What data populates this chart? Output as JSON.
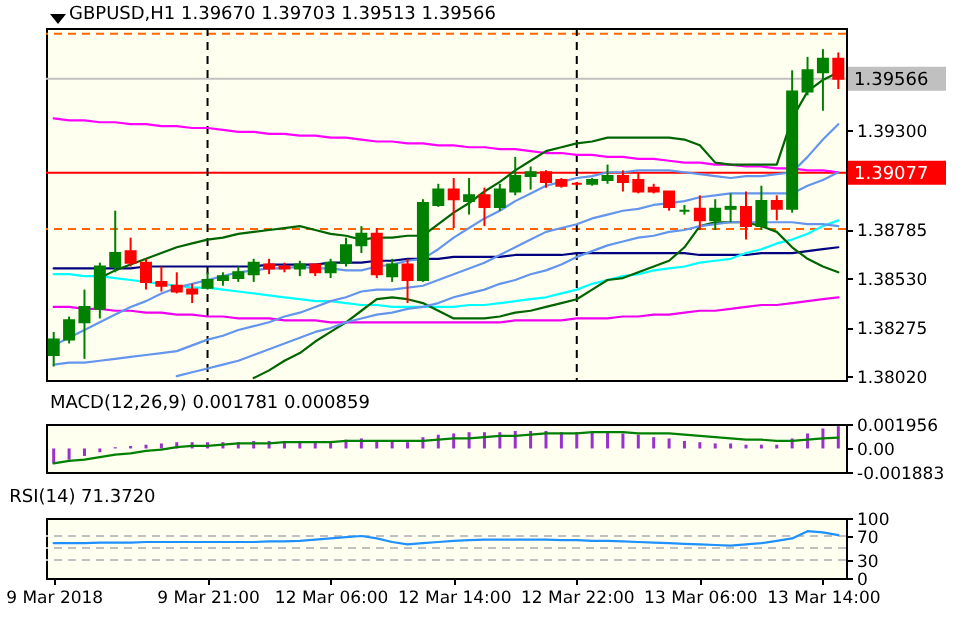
{
  "chart_data": [
    {
      "type": "candlestick",
      "title": "GBPUSD,H1 1.39670 1.39703 1.39513 1.39566",
      "categories": [
        "9 Mar 2018",
        null,
        null,
        null,
        null,
        null,
        null,
        null,
        null,
        null,
        "9 Mar 21:00",
        null,
        null,
        null,
        null,
        null,
        null,
        null,
        "12 Mar 06:00",
        null,
        null,
        null,
        null,
        null,
        null,
        null,
        "12 Mar 14:00",
        null,
        null,
        null,
        null,
        null,
        null,
        null,
        "12 Mar 22:00",
        null,
        null,
        null,
        null,
        null,
        null,
        null,
        "13 Mar 06:00",
        null,
        null,
        null,
        null,
        null,
        null,
        null,
        "13 Mar 14:00",
        null
      ],
      "ohlc": [
        [
          1.3813,
          1.3825,
          1.3807,
          1.3821
        ],
        [
          1.3821,
          1.3833,
          1.3819,
          1.3831
        ],
        [
          1.383,
          1.3847,
          1.3811,
          1.3838
        ],
        [
          1.3837,
          1.3861,
          1.3832,
          1.3859
        ],
        [
          1.3859,
          1.3888,
          1.3856,
          1.3866
        ],
        [
          1.3867,
          1.3874,
          1.3859,
          1.3861
        ],
        [
          1.3861,
          1.3863,
          1.3847,
          1.3851
        ],
        [
          1.3851,
          1.3859,
          1.3846,
          1.3849
        ],
        [
          1.3849,
          1.3856,
          1.3845,
          1.3846
        ],
        [
          1.3847,
          1.385,
          1.384,
          1.3845
        ],
        [
          1.3848,
          1.3856,
          1.3847,
          1.3852
        ],
        [
          1.3852,
          1.3856,
          1.3849,
          1.3854
        ],
        [
          1.3853,
          1.3859,
          1.3851,
          1.3856
        ],
        [
          1.3855,
          1.3863,
          1.3851,
          1.3861
        ],
        [
          1.386,
          1.3863,
          1.3855,
          1.3858
        ],
        [
          1.3859,
          1.3861,
          1.3856,
          1.3858
        ],
        [
          1.3858,
          1.3862,
          1.3854,
          1.386
        ],
        [
          1.386,
          1.386,
          1.3854,
          1.3856
        ],
        [
          1.3856,
          1.3863,
          1.3853,
          1.3861
        ],
        [
          1.3861,
          1.3874,
          1.3859,
          1.387
        ],
        [
          1.387,
          1.388,
          1.3866,
          1.3876
        ],
        [
          1.3876,
          1.3879,
          1.3853,
          1.3855
        ],
        [
          1.3854,
          1.3863,
          1.3851,
          1.386
        ],
        [
          1.386,
          1.3863,
          1.384,
          1.3852
        ],
        [
          1.3852,
          1.3894,
          1.3851,
          1.3892
        ],
        [
          1.3891,
          1.3902,
          1.389,
          1.3899
        ],
        [
          1.3899,
          1.3905,
          1.3879,
          1.3894
        ],
        [
          1.3893,
          1.3905,
          1.3886,
          1.3896
        ],
        [
          1.3896,
          1.39,
          1.388,
          1.389
        ],
        [
          1.389,
          1.3902,
          1.3888,
          1.3899
        ],
        [
          1.3898,
          1.3916,
          1.3896,
          1.3906
        ],
        [
          1.3906,
          1.3911,
          1.3899,
          1.3908
        ],
        [
          1.3908,
          1.3909,
          1.39,
          1.3903
        ],
        [
          1.3904,
          1.3905,
          1.39,
          1.3901
        ],
        [
          1.3902,
          1.3903,
          1.3901,
          1.3902
        ],
        [
          1.3902,
          1.3905,
          1.3901,
          1.3904
        ],
        [
          1.3904,
          1.3912,
          1.3902,
          1.3906
        ],
        [
          1.3906,
          1.3909,
          1.3898,
          1.3903
        ],
        [
          1.3904,
          1.3908,
          1.3897,
          1.3898
        ],
        [
          1.39,
          1.3902,
          1.3897,
          1.3898
        ],
        [
          1.3898,
          1.3898,
          1.3888,
          1.389
        ],
        [
          1.3888,
          1.3891,
          1.3886,
          1.3888
        ],
        [
          1.3889,
          1.3896,
          1.3878,
          1.3883
        ],
        [
          1.3883,
          1.3894,
          1.3878,
          1.3889
        ],
        [
          1.3889,
          1.3897,
          1.3882,
          1.389
        ],
        [
          1.389,
          1.3898,
          1.3873,
          1.388
        ],
        [
          1.388,
          1.3901,
          1.3878,
          1.3893
        ],
        [
          1.3893,
          1.3896,
          1.3883,
          1.3889
        ],
        [
          1.3889,
          1.3961,
          1.3887,
          1.395
        ],
        [
          1.395,
          1.3968,
          1.3948,
          1.3961
        ],
        [
          1.396,
          1.3972,
          1.394,
          1.3967
        ],
        [
          1.3967,
          1.39703,
          1.39513,
          1.39566
        ]
      ],
      "colors": [
        "#008000",
        "#008000",
        "#008000",
        "#008000",
        "#008000",
        "#ff0000",
        "#ff0000",
        "#ff0000",
        "#ff0000",
        "#ff0000",
        "#008000",
        "#008000",
        "#008000",
        "#008000",
        "#ff0000",
        "#ff0000",
        "#008000",
        "#ff0000",
        "#008000",
        "#008000",
        "#008000",
        "#ff0000",
        "#008000",
        "#ff0000",
        "#008000",
        "#008000",
        "#ff0000",
        "#008000",
        "#ff0000",
        "#008000",
        "#008000",
        "#008000",
        "#ff0000",
        "#ff0000",
        "#ff0000",
        "#008000",
        "#008000",
        "#ff0000",
        "#ff0000",
        "#ff0000",
        "#ff0000",
        "#008000",
        "#ff0000",
        "#008000",
        "#008000",
        "#ff0000",
        "#008000",
        "#ff0000",
        "#008000",
        "#008000",
        "#008000",
        "#ff0000"
      ],
      "series": [
        {
          "type": "line",
          "color": "#ff00ff",
          "values": [
            1.3936,
            1.3935,
            1.3935,
            1.3934,
            1.3934,
            1.3933,
            1.3933,
            1.3932,
            1.3932,
            1.3931,
            1.3931,
            1.393,
            1.3929,
            1.3929,
            1.3928,
            1.3928,
            1.3927,
            1.3927,
            1.3926,
            1.3926,
            1.3925,
            1.3924,
            1.3924,
            1.3923,
            1.3923,
            1.3922,
            1.3922,
            1.3921,
            1.3921,
            1.392,
            1.392,
            1.3919,
            1.3918,
            1.3918,
            1.3917,
            1.3917,
            1.3916,
            1.3916,
            1.3915,
            1.3915,
            1.3914,
            1.3913,
            1.3913,
            1.3912,
            1.3912,
            1.3911,
            1.3911,
            1.391,
            1.391,
            1.3909,
            1.3909,
            1.3908
          ]
        },
        {
          "type": "line",
          "color": "#000080",
          "values": [
            1.3858,
            1.3858,
            1.3858,
            1.3858,
            1.3858,
            1.3858,
            1.3859,
            1.3859,
            1.3859,
            1.3859,
            1.3859,
            1.3859,
            1.3859,
            1.3859,
            1.386,
            1.386,
            1.386,
            1.386,
            1.3861,
            1.3861,
            1.3861,
            1.3862,
            1.3862,
            1.3863,
            1.3863,
            1.3863,
            1.3864,
            1.3864,
            1.3864,
            1.3864,
            1.3865,
            1.3865,
            1.3865,
            1.3865,
            1.3866,
            1.3866,
            1.3866,
            1.3866,
            1.3866,
            1.3866,
            1.3866,
            1.3866,
            1.3865,
            1.3865,
            1.3865,
            1.3865,
            1.3866,
            1.3866,
            1.3866,
            1.3867,
            1.3868,
            1.3869
          ]
        },
        {
          "type": "line",
          "color": "#00ffff",
          "values": [
            1.3855,
            1.3855,
            1.3854,
            1.3854,
            1.3853,
            1.3852,
            1.3851,
            1.385,
            1.3849,
            1.3848,
            1.3848,
            1.3847,
            1.3846,
            1.3845,
            1.3844,
            1.3843,
            1.3842,
            1.3841,
            1.3841,
            1.384,
            1.3839,
            1.3839,
            1.3838,
            1.3838,
            1.3838,
            1.3838,
            1.3838,
            1.3839,
            1.3839,
            1.384,
            1.3841,
            1.3842,
            1.3843,
            1.3845,
            1.3847,
            1.385,
            1.3852,
            1.3854,
            1.3855,
            1.3857,
            1.3858,
            1.3859,
            1.3861,
            1.3862,
            1.3863,
            1.3866,
            1.3868,
            1.3871,
            1.3873,
            1.3876,
            1.388,
            1.3883
          ]
        },
        {
          "type": "line",
          "color": "#ee00ee",
          "values": [
            1.3838,
            1.3838,
            1.3837,
            1.3837,
            1.3836,
            1.3836,
            1.3835,
            1.3835,
            1.3834,
            1.3834,
            1.3833,
            1.3833,
            1.3832,
            1.3832,
            1.3832,
            1.3831,
            1.3831,
            1.3831,
            1.383,
            1.383,
            1.383,
            1.383,
            1.383,
            1.383,
            1.383,
            1.383,
            1.383,
            1.383,
            1.383,
            1.383,
            1.3831,
            1.3831,
            1.3831,
            1.3831,
            1.3832,
            1.3832,
            1.3832,
            1.3833,
            1.3833,
            1.3834,
            1.3834,
            1.3835,
            1.3836,
            1.3836,
            1.3837,
            1.3838,
            1.3839,
            1.3839,
            1.384,
            1.3841,
            1.3842,
            1.3843
          ]
        },
        {
          "type": "line",
          "color": "#006400",
          "values": [
            null,
            null,
            null,
            1.3853,
            1.3857,
            1.386,
            1.3863,
            1.3866,
            1.3869,
            1.3871,
            1.3873,
            1.3874,
            1.3876,
            1.3877,
            1.3878,
            1.3879,
            1.388,
            1.3878,
            1.3876,
            1.3875,
            1.3873,
            1.3874,
            1.3874,
            1.3875,
            1.3875,
            1.3881,
            1.3887,
            1.3892,
            1.3898,
            1.3903,
            1.3909,
            1.3914,
            1.3919,
            1.3921,
            1.3923,
            1.3924,
            1.3926,
            1.3926,
            1.3926,
            1.3926,
            1.3926,
            1.3925,
            1.3922,
            1.3913,
            1.3912,
            1.3912,
            1.3912,
            1.3912,
            1.3936,
            1.395,
            1.3956,
            1.396
          ]
        },
        {
          "type": "line",
          "color": "#006400",
          "values": [
            null,
            null,
            null,
            null,
            null,
            null,
            null,
            null,
            null,
            null,
            null,
            null,
            null,
            1.3801,
            1.3805,
            1.381,
            1.3814,
            1.382,
            1.3825,
            1.383,
            1.3836,
            1.3842,
            1.3843,
            1.3842,
            1.384,
            1.3836,
            1.3832,
            1.3832,
            1.3832,
            1.3833,
            1.3835,
            1.3836,
            1.3838,
            1.384,
            1.3842,
            1.3847,
            1.3852,
            1.3853,
            1.3856,
            1.3859,
            1.3862,
            1.3869,
            1.388,
            1.3882,
            1.3882,
            1.3882,
            1.388,
            1.3877,
            1.3869,
            1.3863,
            1.3859,
            1.3856
          ]
        },
        {
          "type": "line",
          "color": "#6495ed",
          "values": [
            1.3818,
            1.3822,
            1.3826,
            1.383,
            1.3834,
            1.3838,
            1.3841,
            1.3845,
            1.3848,
            1.385,
            1.3852,
            1.3854,
            1.3856,
            1.3857,
            1.3858,
            1.3858,
            1.3859,
            1.3858,
            1.3858,
            1.3857,
            1.3857,
            1.3859,
            1.386,
            1.3862,
            1.3863,
            1.3868,
            1.3874,
            1.3879,
            1.3884,
            1.3888,
            1.3893,
            1.3897,
            1.3901,
            1.3903,
            1.3905,
            1.3906,
            1.3908,
            1.3908,
            1.3909,
            1.3909,
            1.3909,
            1.3908,
            1.3907,
            1.3906,
            1.3905,
            1.3906,
            1.3906,
            1.3907,
            1.3908,
            1.3916,
            1.3925,
            1.3933
          ]
        },
        {
          "type": "line",
          "color": "#6495ed",
          "values": [
            1.3808,
            1.3809,
            1.3809,
            1.381,
            1.3811,
            1.3812,
            1.3813,
            1.3814,
            1.3815,
            1.3818,
            1.3821,
            1.3823,
            1.3826,
            1.3828,
            1.383,
            1.3833,
            1.3835,
            1.3838,
            1.3841,
            1.3843,
            1.3846,
            1.3847,
            1.3847,
            1.3848,
            1.3849,
            1.3852,
            1.3855,
            1.3858,
            1.3861,
            1.3865,
            1.3869,
            1.3873,
            1.3877,
            1.3879,
            1.3881,
            1.3884,
            1.3886,
            1.3888,
            1.3889,
            1.3891,
            1.3892,
            1.3893,
            1.3895,
            1.3896,
            1.3897,
            1.3897,
            1.3897,
            1.3897,
            1.3897,
            1.3901,
            1.3904,
            1.3908
          ]
        },
        {
          "type": "line",
          "color": "#6495ed",
          "values": [
            null,
            null,
            null,
            null,
            null,
            null,
            null,
            null,
            1.3802,
            1.3804,
            1.3806,
            1.3808,
            1.381,
            1.3813,
            1.3816,
            1.3819,
            1.3822,
            1.3825,
            1.3827,
            1.383,
            1.3832,
            1.3834,
            1.3835,
            1.3837,
            1.3838,
            1.384,
            1.3843,
            1.3845,
            1.3847,
            1.385,
            1.3852,
            1.3855,
            1.3857,
            1.386,
            1.3864,
            1.3867,
            1.387,
            1.3872,
            1.3874,
            1.3875,
            1.3877,
            1.3878,
            1.388,
            1.3881,
            1.3882,
            1.3882,
            1.3882,
            1.3882,
            1.3882,
            1.3881,
            1.3881,
            1.388
          ]
        }
      ],
      "ref_lines": [
        {
          "axis": "y",
          "value": 1.398,
          "color": "#ff6600",
          "line_style": "dashed"
        },
        {
          "axis": "y",
          "value": 1.38785,
          "color": "#ff6600",
          "line_style": "dashed"
        },
        {
          "axis": "y",
          "value": 1.39566,
          "label": "1.39566",
          "color": "#c0c0c0"
        },
        {
          "axis": "y",
          "value": 1.39077,
          "label": "1.39077",
          "color": "#ff0000"
        },
        {
          "axis": "x",
          "value": "9 Mar 21:00",
          "color": "#000000",
          "line_style": "dashed"
        },
        {
          "axis": "x",
          "value": "12 Mar 22:00",
          "color": "#000000",
          "line_style": "dashed"
        }
      ],
      "ylim": [
        1.38,
        1.3983
      ],
      "yticks": [
        {
          "value": 1.3802,
          "label": "1.38020"
        },
        {
          "value": 1.38275,
          "label": "1.38275"
        },
        {
          "value": 1.3853,
          "label": "1.38530"
        },
        {
          "value": 1.38785,
          "label": "1.38785"
        },
        {
          "value": 1.393,
          "label": "1.39300"
        }
      ],
      "tick_labels": "y"
    },
    {
      "type": "bar",
      "title": "MACD(12,26,9) 0.001781 0.000859",
      "categories": [
        "9 Mar 2018",
        null,
        null,
        null,
        null,
        null,
        null,
        null,
        null,
        null,
        "9 Mar 21:00",
        null,
        null,
        null,
        null,
        null,
        null,
        null,
        "12 Mar 06:00",
        null,
        null,
        null,
        null,
        null,
        null,
        null,
        "12 Mar 14:00",
        null,
        null,
        null,
        null,
        null,
        null,
        null,
        "12 Mar 22:00",
        null,
        null,
        null,
        null,
        null,
        null,
        null,
        "13 Mar 06:00",
        null,
        null,
        null,
        null,
        null,
        null,
        null,
        "13 Mar 14:00",
        null
      ],
      "series": [
        {
          "type": "bar",
          "color": "#9932cc",
          "values": [
            -0.0012,
            -0.0009,
            -0.0006,
            -0.0003,
            0.0001,
            0.0002,
            0.0003,
            0.0004,
            0.0005,
            0.0005,
            0.0005,
            0.0005,
            0.0005,
            0.0006,
            0.0006,
            0.0006,
            0.0006,
            0.0006,
            0.0006,
            0.0007,
            0.0008,
            0.0006,
            0.0006,
            0.0005,
            0.0009,
            0.0011,
            0.0012,
            0.0013,
            0.0013,
            0.0013,
            0.0014,
            0.0014,
            0.0014,
            0.0013,
            0.0013,
            0.0013,
            0.0013,
            0.0012,
            0.0011,
            0.0009,
            0.0008,
            0.0006,
            0.0005,
            0.0004,
            0.0004,
            0.0003,
            0.0003,
            0.0003,
            0.0008,
            0.0012,
            0.0016,
            0.001781
          ]
        },
        {
          "type": "line",
          "color": "#008000",
          "values": [
            -0.0012,
            -0.001,
            -0.0009,
            -0.0007,
            -0.0005,
            -0.0004,
            -0.0002,
            -0.0001,
            0.0001,
            0.0002,
            0.0002,
            0.0003,
            0.0004,
            0.0004,
            0.0004,
            0.0005,
            0.0005,
            0.0005,
            0.0005,
            0.0006,
            0.0006,
            0.0006,
            0.0006,
            0.0006,
            0.0006,
            0.0007,
            0.0008,
            0.0008,
            0.0009,
            0.001,
            0.001,
            0.0011,
            0.0012,
            0.0012,
            0.0012,
            0.0013,
            0.0013,
            0.0013,
            0.0012,
            0.0012,
            0.0012,
            0.0011,
            0.001,
            0.0009,
            0.0008,
            0.0007,
            0.0007,
            0.0006,
            0.0006,
            0.0007,
            0.0008,
            0.000859
          ]
        }
      ],
      "ylim": [
        -0.001883,
        0.001956
      ],
      "yticks": [
        {
          "value": -0.001883,
          "label": "-0.001883"
        },
        {
          "value": 0,
          "label": "0.00"
        },
        {
          "value": 0.001956,
          "label": "0.001956"
        }
      ],
      "tick_labels": "y"
    },
    {
      "type": "line",
      "title": "RSI(14) 71.3720",
      "categories": [
        "9 Mar 2018",
        null,
        null,
        null,
        null,
        null,
        null,
        null,
        null,
        null,
        "9 Mar 21:00",
        null,
        null,
        null,
        null,
        null,
        null,
        null,
        "12 Mar 06:00",
        null,
        null,
        null,
        null,
        null,
        null,
        null,
        "12 Mar 14:00",
        null,
        null,
        null,
        null,
        null,
        null,
        null,
        "12 Mar 22:00",
        null,
        null,
        null,
        null,
        null,
        null,
        null,
        "13 Mar 06:00",
        null,
        null,
        null,
        null,
        null,
        null,
        null,
        "13 Mar 14:00",
        null
      ],
      "series": [
        {
          "color": "#1e90ff",
          "values": [
            58,
            58,
            58,
            59,
            59,
            59,
            60,
            60,
            60,
            60,
            60,
            60,
            60,
            60,
            61,
            61,
            62,
            64,
            66,
            68,
            70,
            66,
            60,
            56,
            58,
            60,
            62,
            63,
            64,
            64,
            64,
            64,
            64,
            63,
            63,
            62,
            62,
            61,
            60,
            59,
            58,
            57,
            56,
            55,
            54,
            56,
            58,
            62,
            66,
            78,
            76,
            71.372
          ]
        }
      ],
      "ref_lines": [
        {
          "axis": "y",
          "value": 70,
          "color": "#c0c0c0",
          "line_style": "dashed"
        },
        {
          "axis": "y",
          "value": 50,
          "color": "#c0c0c0",
          "line_style": "dashed"
        },
        {
          "axis": "y",
          "value": 30,
          "color": "#c0c0c0",
          "line_style": "dashed"
        }
      ],
      "ylim": [
        0,
        100
      ],
      "yticks": [
        0,
        30,
        70,
        100
      ]
    }
  ]
}
